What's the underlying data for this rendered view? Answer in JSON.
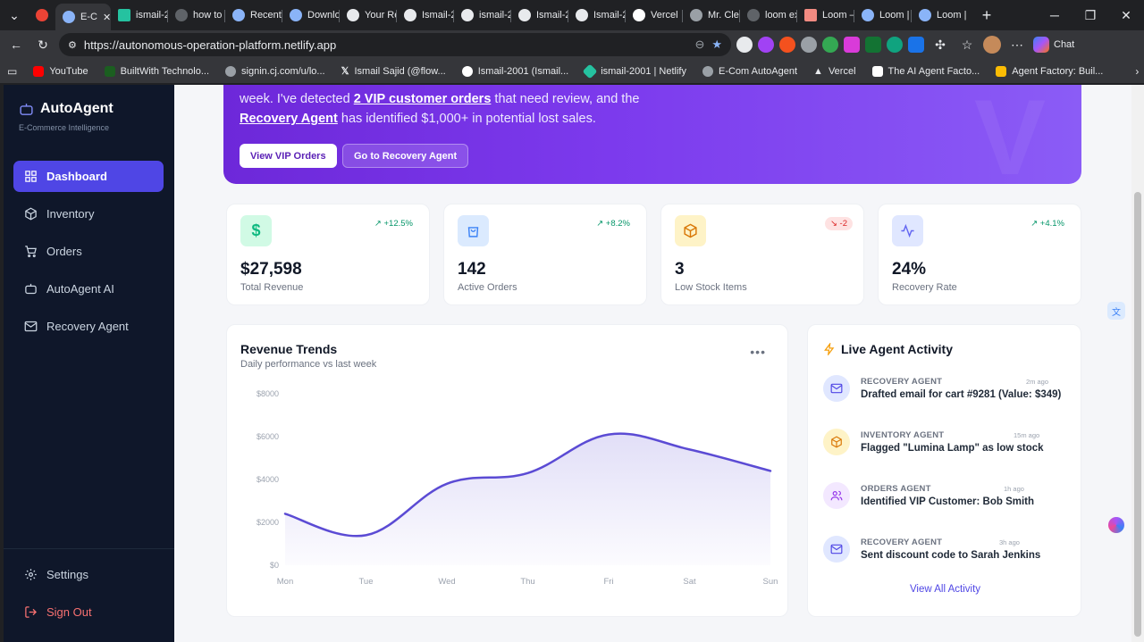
{
  "browser": {
    "tabs": [
      {
        "label": "",
        "icon": "record-icon"
      },
      {
        "label": "E-C",
        "icon": "globe-icon",
        "active": true
      },
      {
        "label": "ismail-2",
        "icon": "netlify-icon"
      },
      {
        "label": "how to c",
        "icon": "search-icon"
      },
      {
        "label": "Recent |",
        "icon": "app-icon"
      },
      {
        "label": "Downlo",
        "icon": "app-icon"
      },
      {
        "label": "Your Re",
        "icon": "github-icon"
      },
      {
        "label": "Ismail-2",
        "icon": "github-icon"
      },
      {
        "label": "ismail-2",
        "icon": "github-icon"
      },
      {
        "label": "Ismail-2",
        "icon": "github-icon"
      },
      {
        "label": "Ismail-2",
        "icon": "github-icon"
      },
      {
        "label": "Vercel",
        "icon": "vercel-icon"
      },
      {
        "label": "Mr. Clea",
        "icon": "globe-icon"
      },
      {
        "label": "loom ex",
        "icon": "search-icon"
      },
      {
        "label": "Loom –",
        "icon": "loom-icon"
      },
      {
        "label": "Loom | I",
        "icon": "app-icon"
      },
      {
        "label": "Loom | I",
        "icon": "app-icon"
      }
    ],
    "url": "https://autonomous-operation-platform.netlify.app",
    "chat_label": "Chat",
    "bookmarks": [
      {
        "label": "YouTube",
        "color": "#ff0000"
      },
      {
        "label": "BuiltWith Technolo...",
        "color": "#1b5e20"
      },
      {
        "label": "signin.cj.com/u/lo...",
        "color": "#9aa0a6"
      },
      {
        "label": "Ismail Sajid (@flow...",
        "color": "#ffffff"
      },
      {
        "label": "Ismail-2001 (Ismail...",
        "color": "#ffffff"
      },
      {
        "label": "ismail-2001 | Netlify",
        "color": "#25c2a0"
      },
      {
        "label": "E-Com AutoAgent",
        "color": "#9aa0a6"
      },
      {
        "label": "Vercel",
        "color": "#ffffff"
      },
      {
        "label": "The AI Agent Facto...",
        "color": "#34a853"
      },
      {
        "label": "Agent Factory: Buil...",
        "color": "#fbbc04"
      }
    ]
  },
  "sidebar": {
    "brand": "AutoAgent",
    "brand_sub": "E-Commerce Intelligence",
    "items": [
      {
        "label": "Dashboard",
        "icon": "grid-icon",
        "active": true
      },
      {
        "label": "Inventory",
        "icon": "box-icon"
      },
      {
        "label": "Orders",
        "icon": "cart-icon"
      },
      {
        "label": "AutoAgent AI",
        "icon": "bot-icon"
      },
      {
        "label": "Recovery Agent",
        "icon": "mail-icon"
      }
    ],
    "settings": "Settings",
    "sign_out": "Sign Out"
  },
  "hero": {
    "line1_prefix": "week. I've detected ",
    "line1_link": "2 VIP customer orders",
    "line1_suffix": " that need review, and the",
    "line2_link": "Recovery Agent",
    "line2_suffix": " has identified $1,000+ in potential lost sales.",
    "btn_vip": "View VIP Orders",
    "btn_recovery": "Go to Recovery Agent"
  },
  "stats": [
    {
      "value": "$27,598",
      "label": "Total Revenue",
      "change": "+12.5%",
      "trend": "up",
      "icon": "dollar-icon",
      "color": "#10b981",
      "bg": "#d1fae5"
    },
    {
      "value": "142",
      "label": "Active Orders",
      "change": "+8.2%",
      "trend": "up",
      "icon": "shopping-bag-icon",
      "color": "#3b82f6",
      "bg": "#dbeafe"
    },
    {
      "value": "3",
      "label": "Low Stock Items",
      "change": "-2",
      "trend": "down",
      "icon": "box-icon",
      "color": "#f59e0b",
      "bg": "#fef3c7"
    },
    {
      "value": "24%",
      "label": "Recovery Rate",
      "change": "+4.1%",
      "trend": "up",
      "icon": "activity-icon",
      "color": "#6366f1",
      "bg": "#e0e7ff"
    }
  ],
  "chart_card": {
    "title": "Revenue Trends",
    "subtitle": "Daily performance vs last week"
  },
  "chart_data": {
    "type": "area",
    "categories": [
      "Mon",
      "Tue",
      "Wed",
      "Thu",
      "Fri",
      "Sat",
      "Sun"
    ],
    "series": [
      {
        "values": [
          2400,
          1400,
          3800,
          4300,
          6100,
          5400,
          4400
        ]
      }
    ],
    "ylim": [
      0,
      8000
    ],
    "yticks": [
      "$0",
      "$2000",
      "$4000",
      "$6000",
      "$8000"
    ],
    "ytick_values": [
      0,
      2000,
      4000,
      6000,
      8000
    ],
    "grid": false,
    "color": "#5b4bd4"
  },
  "activity": {
    "title": "Live Agent Activity",
    "items": [
      {
        "agent": "RECOVERY AGENT",
        "time": "2m ago",
        "message": "Drafted email for cart #9281 (Value: $349)",
        "icon": "mail-icon",
        "color": "#4f46e5",
        "bg": "#e0e7ff"
      },
      {
        "agent": "INVENTORY AGENT",
        "time": "15m ago",
        "message": "Flagged \"Lumina Lamp\" as low stock",
        "icon": "box-icon",
        "color": "#d97706",
        "bg": "#fef3c7"
      },
      {
        "agent": "ORDERS AGENT",
        "time": "1h ago",
        "message": "Identified VIP Customer: Bob Smith",
        "icon": "users-icon",
        "color": "#9333ea",
        "bg": "#f3e8ff"
      },
      {
        "agent": "RECOVERY AGENT",
        "time": "3h ago",
        "message": "Sent discount code to Sarah Jenkins",
        "icon": "mail-icon",
        "color": "#4f46e5",
        "bg": "#e0e7ff"
      }
    ],
    "view_all": "View All Activity"
  }
}
